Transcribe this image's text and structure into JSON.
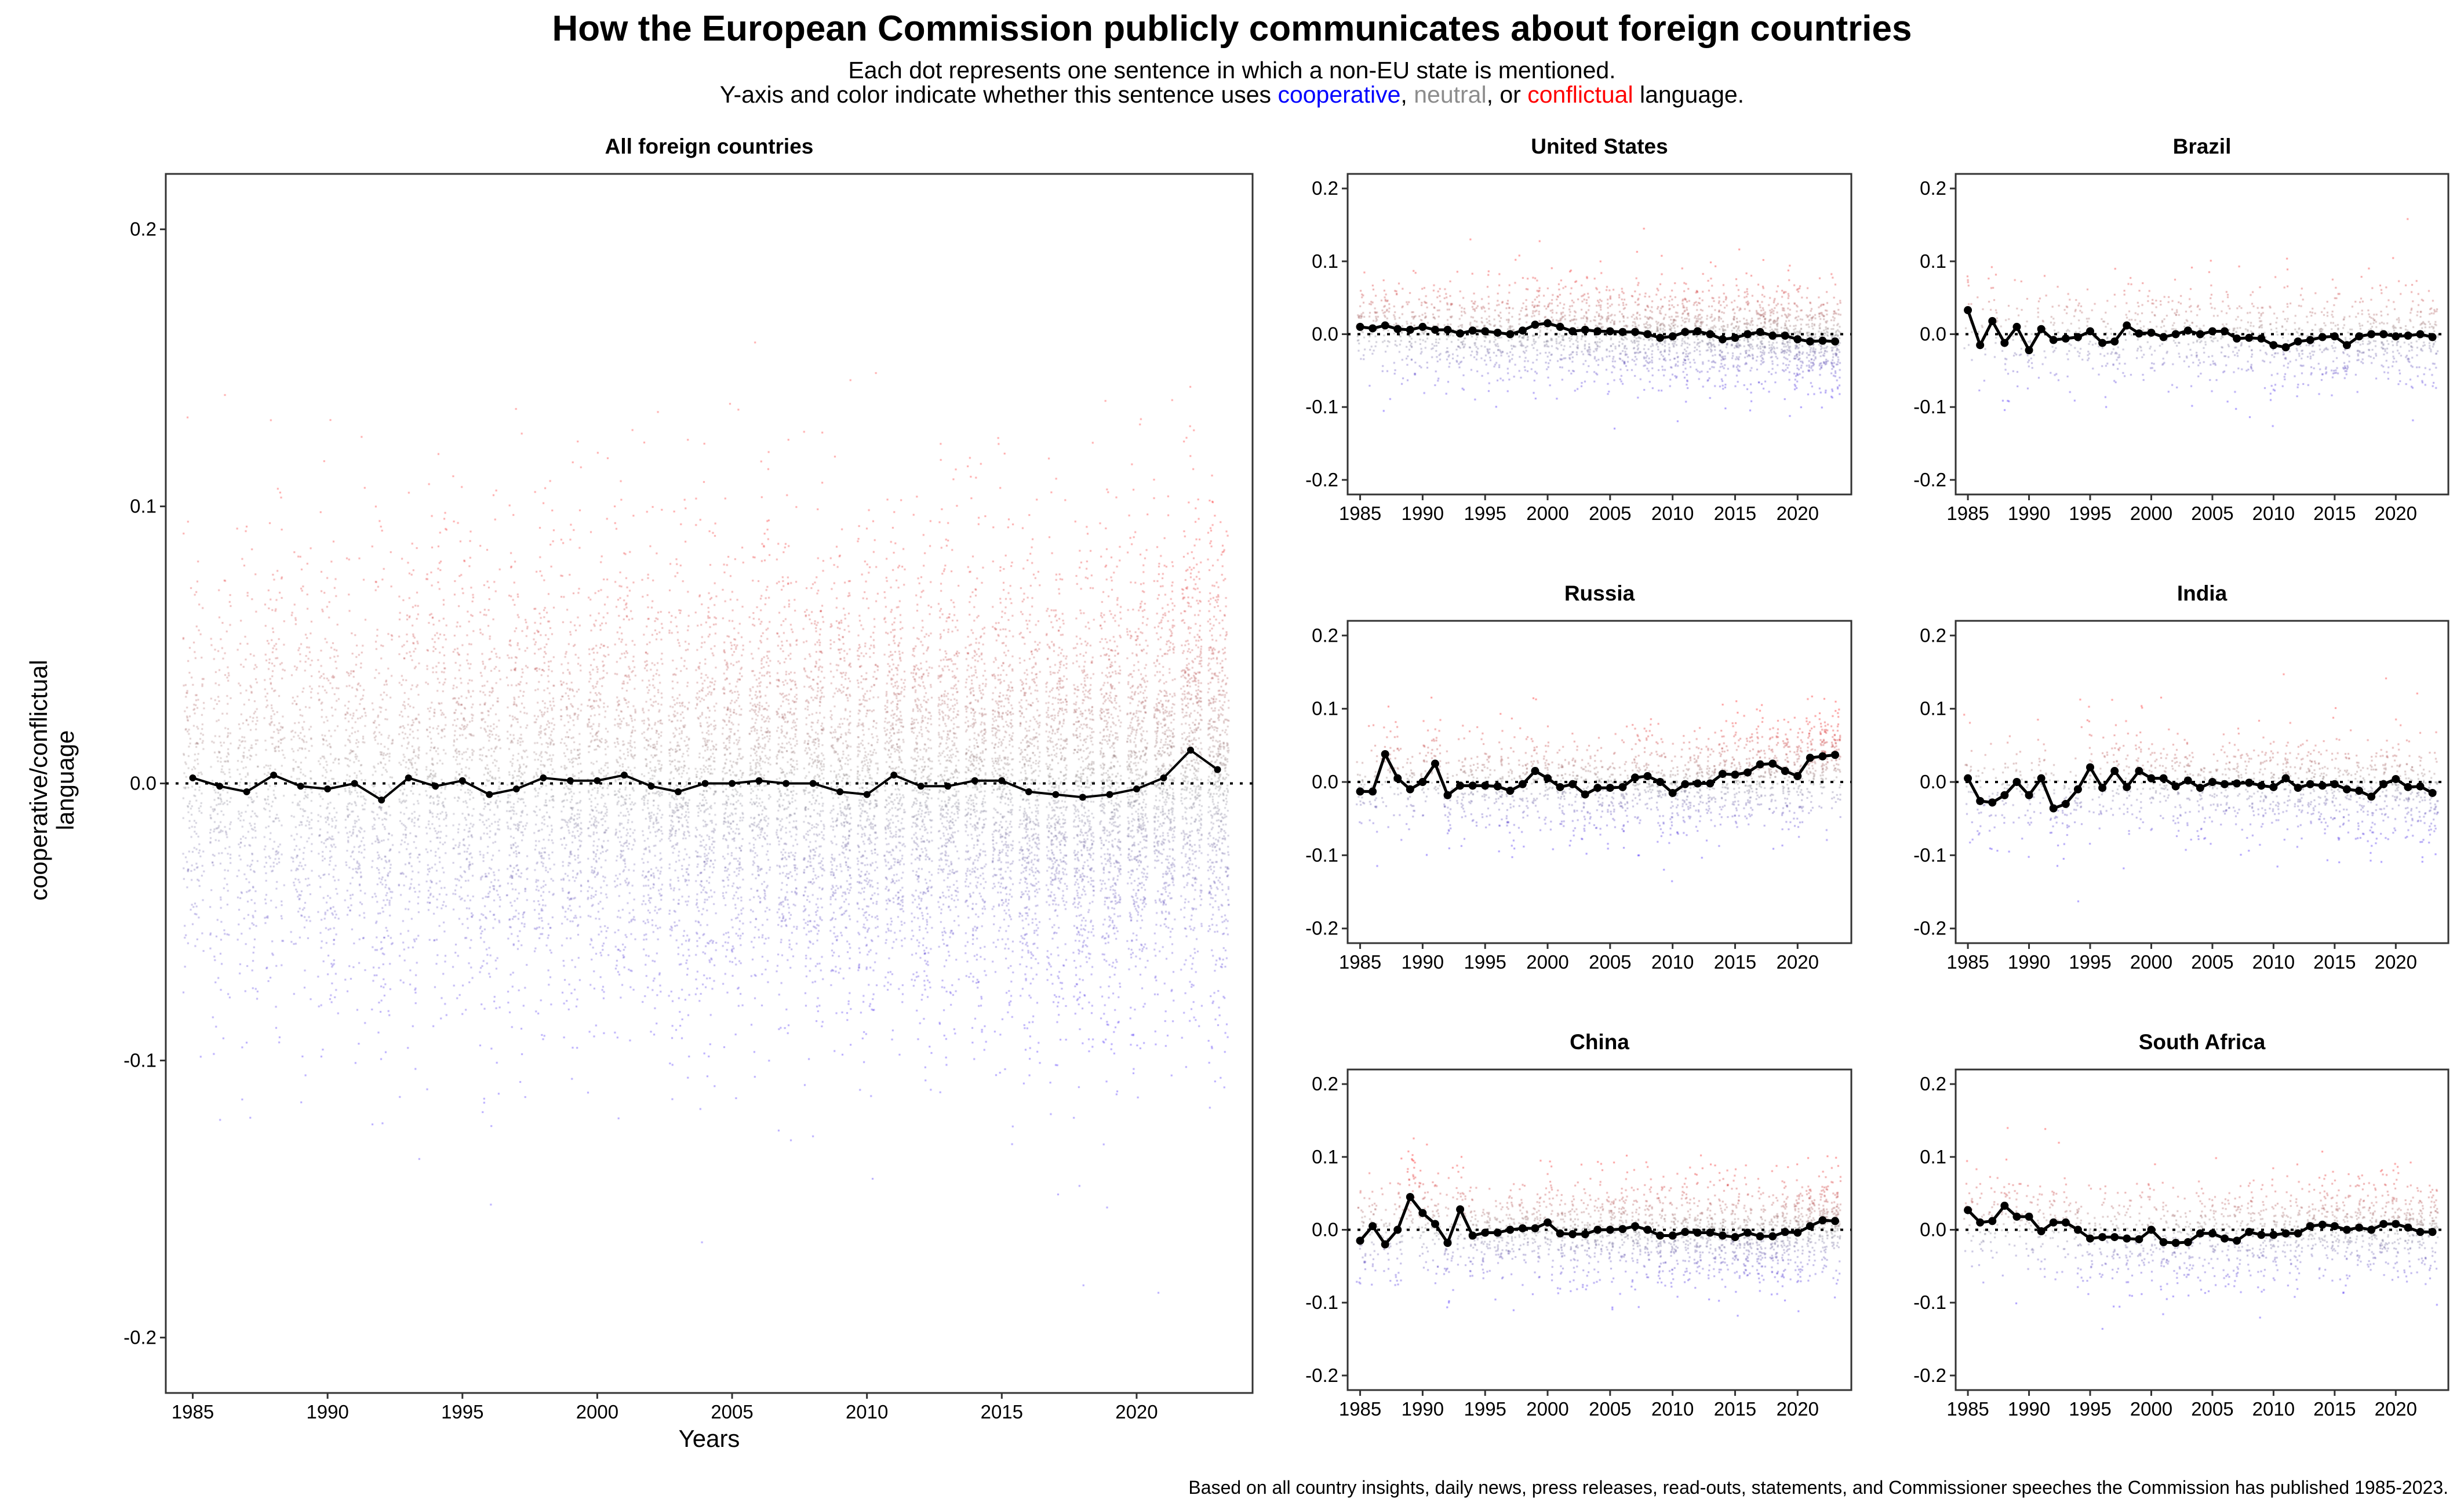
{
  "title": "How the European Commission publicly communicates about foreign countries",
  "subtitle_line1": "Each dot represents one sentence in which a non-EU state is mentioned.",
  "subtitle_line2": {
    "prefix": "Y-axis and color indicate whether this sentence uses ",
    "cooperative": "cooperative",
    "sep1": ", ",
    "neutral": "neutral",
    "sep2": ", or ",
    "conflictual": "conflictual",
    "suffix": " language."
  },
  "footer": "Based on all country insights, daily news, press releases, read-outs, statements, and Commissioner speeches the Commission has published 1985-2023.",
  "colors": {
    "cooperative": "#0000ff",
    "neutral": "#8c8c8c",
    "conflictual": "#ff0000",
    "mean_line": "#000000"
  },
  "chart_data": {
    "type": "scatter",
    "ylabel": "cooperative/conflictual language",
    "xlabel": "Years",
    "x": [
      1985,
      1986,
      1987,
      1988,
      1989,
      1990,
      1991,
      1992,
      1993,
      1994,
      1995,
      1996,
      1997,
      1998,
      1999,
      2000,
      2001,
      2002,
      2003,
      2004,
      2005,
      2006,
      2007,
      2008,
      2009,
      2010,
      2011,
      2012,
      2013,
      2014,
      2015,
      2016,
      2017,
      2018,
      2019,
      2020,
      2021,
      2022,
      2023
    ],
    "xlim": [
      1984,
      2024.3
    ],
    "ylim": [
      -0.22,
      0.22
    ],
    "x_ticks": [
      "1985",
      "1990",
      "1995",
      "2000",
      "2005",
      "2010",
      "2015",
      "2020"
    ],
    "y_ticks": [
      "0.2",
      "0.1",
      "0.0",
      "-0.1",
      "-0.2"
    ],
    "reference_line": 0.0,
    "grid": false,
    "panels": [
      {
        "title": "All foreign countries",
        "mean": [
          0.002,
          -0.001,
          -0.003,
          0.003,
          -0.001,
          -0.002,
          0.0,
          -0.006,
          0.002,
          -0.001,
          0.001,
          -0.004,
          -0.002,
          0.002,
          0.001,
          0.001,
          0.003,
          -0.001,
          -0.003,
          0.0,
          0.0,
          0.001,
          0.0,
          0.0,
          -0.003,
          -0.004,
          0.003,
          -0.001,
          -0.001,
          0.001,
          0.001,
          -0.003,
          -0.004,
          -0.005,
          -0.004,
          -0.002,
          0.002,
          0.012,
          0.005
        ]
      },
      {
        "title": "United States",
        "mean": [
          0.01,
          0.008,
          0.012,
          0.007,
          0.006,
          0.01,
          0.006,
          0.006,
          0.001,
          0.005,
          0.004,
          0.002,
          0.0,
          0.005,
          0.013,
          0.015,
          0.01,
          0.004,
          0.006,
          0.004,
          0.004,
          0.003,
          0.003,
          0.0,
          -0.005,
          -0.003,
          0.003,
          0.004,
          0.0,
          -0.007,
          -0.005,
          0.0,
          0.003,
          -0.002,
          -0.002,
          -0.007,
          -0.01,
          -0.009,
          -0.01
        ]
      },
      {
        "title": "Brazil",
        "mean": [
          0.033,
          -0.015,
          0.018,
          -0.012,
          0.01,
          -0.022,
          0.007,
          -0.008,
          -0.006,
          -0.004,
          0.004,
          -0.012,
          -0.01,
          0.012,
          0.001,
          0.002,
          -0.004,
          0.0,
          0.005,
          0.0,
          0.004,
          0.004,
          -0.006,
          -0.005,
          -0.006,
          -0.015,
          -0.018,
          -0.01,
          -0.008,
          -0.004,
          -0.003,
          -0.015,
          -0.003,
          0.0,
          0.0,
          -0.003,
          -0.002,
          0.0,
          -0.004
        ]
      },
      {
        "title": "Russia",
        "mean": [
          -0.013,
          -0.013,
          0.038,
          0.005,
          -0.01,
          0.0,
          0.025,
          -0.018,
          -0.005,
          -0.005,
          -0.005,
          -0.006,
          -0.012,
          -0.003,
          0.015,
          0.005,
          -0.007,
          -0.003,
          -0.017,
          -0.008,
          -0.008,
          -0.007,
          0.006,
          0.008,
          0.0,
          -0.015,
          -0.003,
          -0.002,
          -0.002,
          0.011,
          0.01,
          0.013,
          0.024,
          0.025,
          0.015,
          0.008,
          0.033,
          0.035,
          0.037
        ]
      },
      {
        "title": "India",
        "mean": [
          0.005,
          -0.026,
          -0.028,
          -0.018,
          0.0,
          -0.018,
          0.005,
          -0.036,
          -0.03,
          -0.01,
          0.02,
          -0.008,
          0.015,
          -0.007,
          0.015,
          0.005,
          0.005,
          -0.006,
          0.002,
          -0.008,
          0.0,
          -0.003,
          -0.002,
          -0.001,
          -0.005,
          -0.007,
          0.005,
          -0.008,
          -0.003,
          -0.005,
          -0.003,
          -0.01,
          -0.012,
          -0.02,
          -0.003,
          0.004,
          -0.007,
          -0.006,
          -0.015
        ]
      },
      {
        "title": "China",
        "mean": [
          -0.015,
          0.005,
          -0.02,
          0.0,
          0.045,
          0.023,
          0.008,
          -0.018,
          0.028,
          -0.008,
          -0.004,
          -0.004,
          0.0,
          0.002,
          0.002,
          0.01,
          -0.005,
          -0.006,
          -0.006,
          0.0,
          0.0,
          0.001,
          0.005,
          0.0,
          -0.008,
          -0.008,
          -0.003,
          -0.004,
          -0.004,
          -0.008,
          -0.01,
          -0.004,
          -0.009,
          -0.009,
          -0.003,
          -0.004,
          0.005,
          0.013,
          0.012
        ]
      },
      {
        "title": "South Africa",
        "mean": [
          0.027,
          0.01,
          0.012,
          0.033,
          0.018,
          0.018,
          -0.002,
          0.01,
          0.01,
          0.0,
          -0.012,
          -0.01,
          -0.01,
          -0.012,
          -0.013,
          0.0,
          -0.017,
          -0.018,
          -0.017,
          -0.005,
          -0.005,
          -0.012,
          -0.015,
          -0.003,
          -0.007,
          -0.007,
          -0.005,
          -0.005,
          0.005,
          0.007,
          0.005,
          0.0,
          0.003,
          0.0,
          0.008,
          0.008,
          0.003,
          -0.003,
          -0.003
        ]
      }
    ]
  }
}
